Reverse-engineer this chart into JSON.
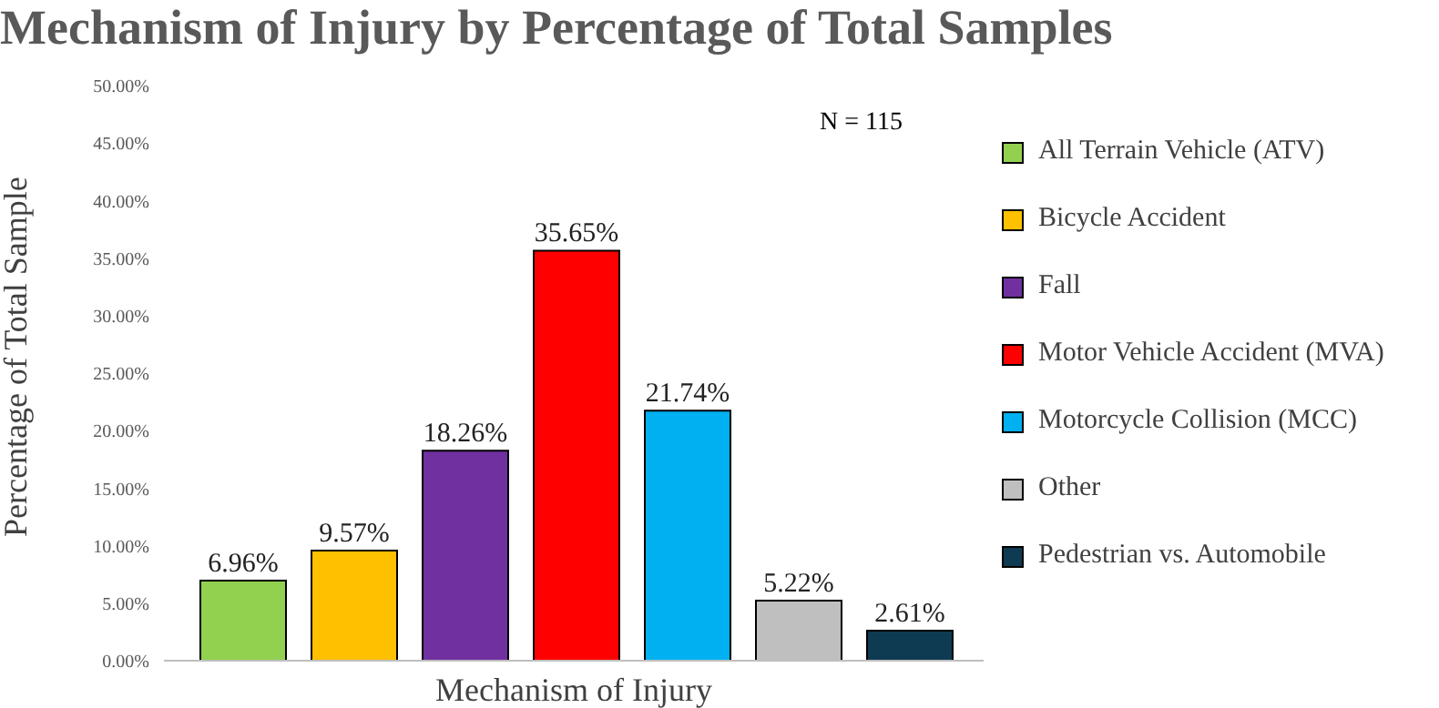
{
  "chart_data": {
    "type": "bar",
    "title": "Mechanism of Injury by Percentage of Total Samples",
    "xlabel": "Mechanism of Injury",
    "ylabel": "Percentage of Total Sample",
    "annotations": [
      "N = 115"
    ],
    "categories": [
      null
    ],
    "series": [
      {
        "name": "All Terrain Vehicle (ATV)",
        "color": "#92d050",
        "values": [
          6.96
        ],
        "value_labels": [
          "6.96%"
        ]
      },
      {
        "name": "Bicycle Accident",
        "color": "#ffc000",
        "values": [
          9.57
        ],
        "value_labels": [
          "9.57%"
        ]
      },
      {
        "name": "Fall",
        "color": "#7030a0",
        "values": [
          18.26
        ],
        "value_labels": [
          "18.26%"
        ]
      },
      {
        "name": "Motor Vehicle Accident (MVA)",
        "color": "#ff0000",
        "values": [
          35.65
        ],
        "value_labels": [
          "35.65%"
        ]
      },
      {
        "name": "Motorcycle Collision (MCC)",
        "color": "#00b0f0",
        "values": [
          21.74
        ],
        "value_labels": [
          "21.74%"
        ]
      },
      {
        "name": "Other",
        "color": "#bfbfbf",
        "values": [
          5.22
        ],
        "value_labels": [
          "5.22%"
        ]
      },
      {
        "name": "Pedestrian vs. Automobile",
        "color": "#0e3a52",
        "values": [
          2.61
        ],
        "value_labels": [
          "2.61%"
        ]
      }
    ],
    "ylim": [
      0,
      50
    ],
    "yticks": [
      {
        "value": 0,
        "label": "0.00%"
      },
      {
        "value": 5,
        "label": "5.00%"
      },
      {
        "value": 10,
        "label": "10.00%"
      },
      {
        "value": 15,
        "label": "15.00%"
      },
      {
        "value": 20,
        "label": "20.00%"
      },
      {
        "value": 25,
        "label": "25.00%"
      },
      {
        "value": 30,
        "label": "30.00%"
      },
      {
        "value": 35,
        "label": "35.00%"
      },
      {
        "value": 40,
        "label": "40.00%"
      },
      {
        "value": 45,
        "label": "45.00%"
      },
      {
        "value": 50,
        "label": "50.00%"
      }
    ],
    "legend": "right"
  }
}
